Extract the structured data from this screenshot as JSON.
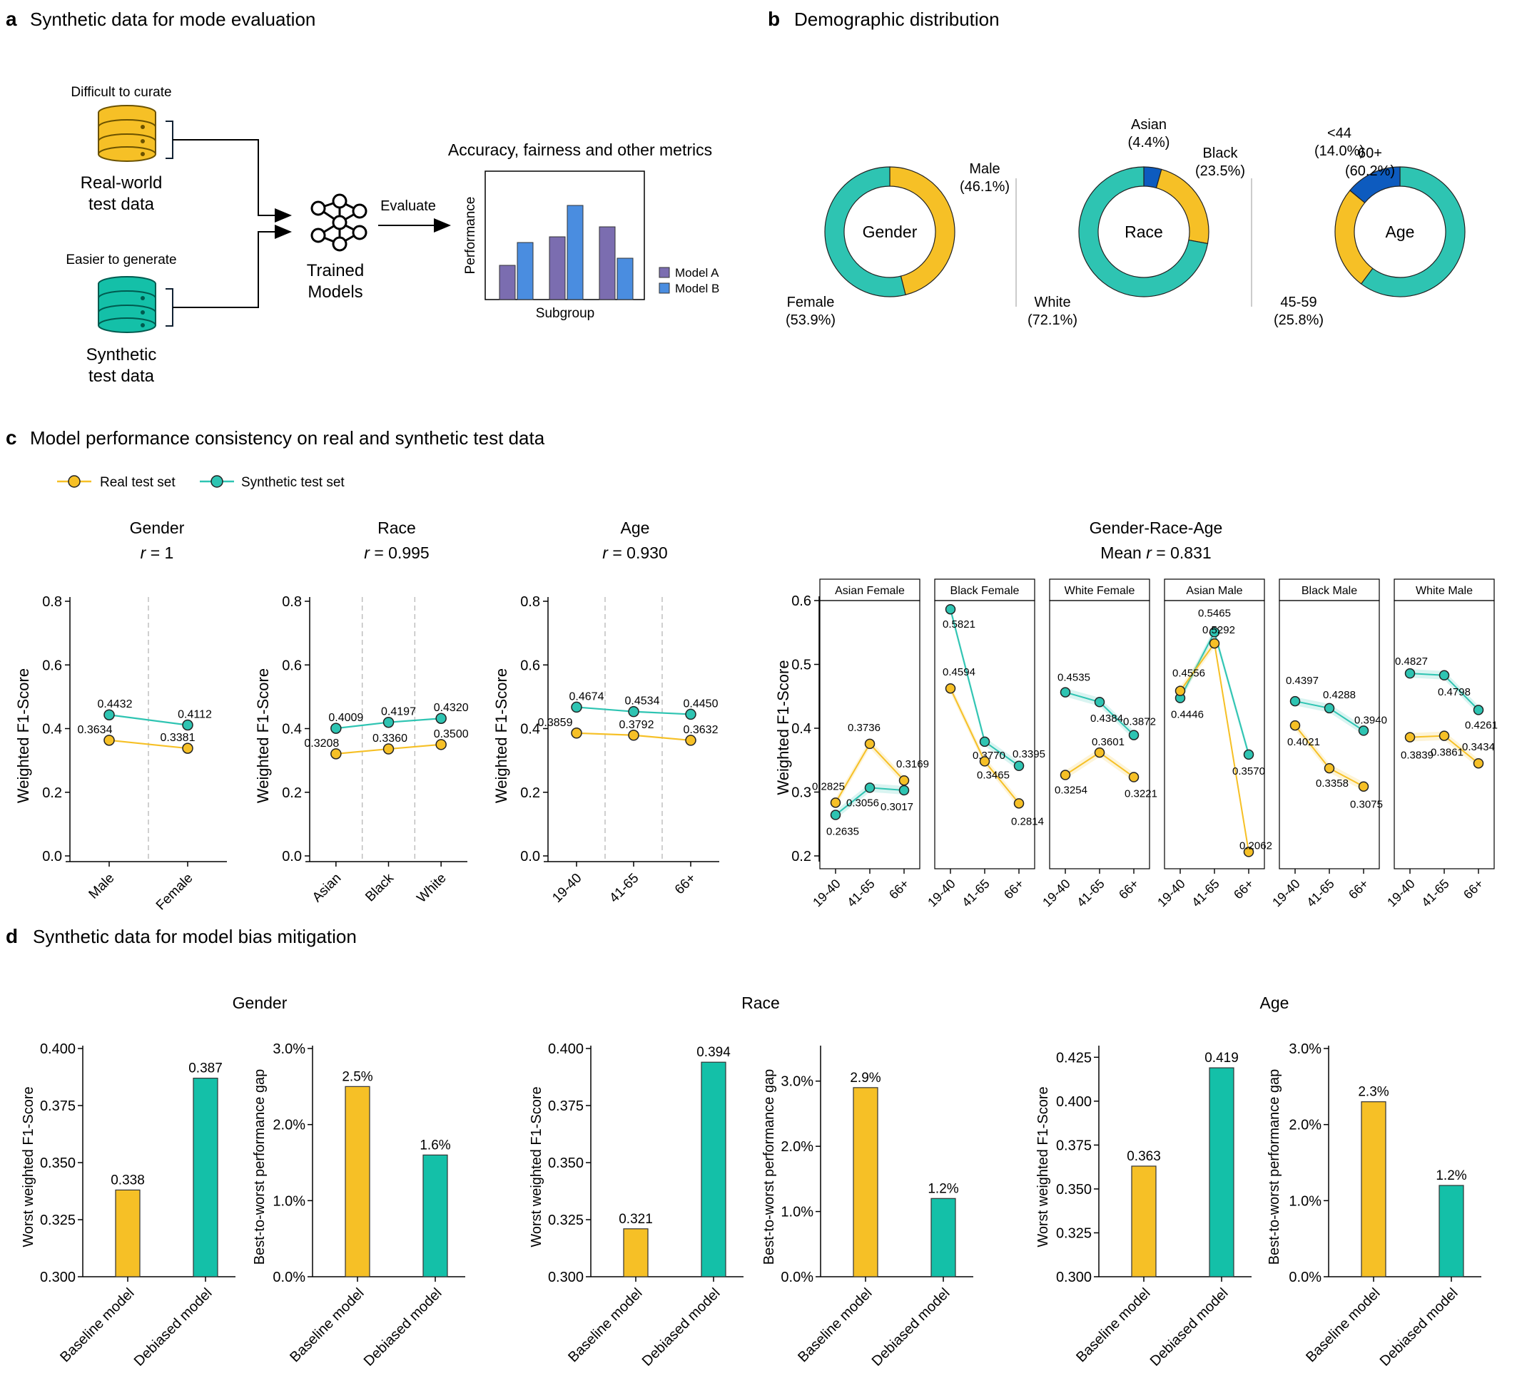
{
  "colors": {
    "yellow": "#f6c026",
    "teal": "#2ec4b2",
    "blue": "#0d5bbf",
    "purple": "#7b6db0",
    "lightblue": "#4a8de0",
    "db_yellow": "#f6c026",
    "db_teal": "#14c0a8"
  },
  "panel_a": {
    "letter": "a",
    "title": "Synthetic data for mode evaluation",
    "difficult": "Difficult to curate",
    "real_line1": "Real-world",
    "real_line2": "test data",
    "easier": "Easier to generate",
    "syn_line1": "Synthetic",
    "syn_line2": "test data",
    "trained1": "Trained",
    "trained2": "Models",
    "evaluate": "Evaluate",
    "metrics_title": "Accuracy, fairness and other metrics",
    "ylabel": "Performance",
    "xlabel": "Subgroup",
    "legend": [
      "Model A",
      "Model B"
    ],
    "icon_names": [
      "database-icon",
      "neural-network-icon"
    ]
  },
  "panel_b": {
    "letter": "b",
    "title": "Demographic distribution",
    "donuts": [
      {
        "center": "Gender",
        "segments": [
          {
            "label": "Male",
            "pct": "(46.1%)",
            "value": 46.1,
            "color": "#f6c026"
          },
          {
            "label": "Female",
            "pct": "(53.9%)",
            "value": 53.9,
            "color": "#2ec4b2"
          }
        ]
      },
      {
        "center": "Race",
        "segments": [
          {
            "label": "Asian",
            "pct": "(4.4%)",
            "value": 4.4,
            "color": "#0d5bbf"
          },
          {
            "label": "Black",
            "pct": "(23.5%)",
            "value": 23.5,
            "color": "#f6c026"
          },
          {
            "label": "White",
            "pct": "(72.1%)",
            "value": 72.1,
            "color": "#2ec4b2"
          }
        ]
      },
      {
        "center": "Age",
        "segments": [
          {
            "label": "60+",
            "pct": "(60.2%)",
            "value": 60.2,
            "color": "#2ec4b2"
          },
          {
            "label": "45-59",
            "pct": "(25.8%)",
            "value": 25.8,
            "color": "#f6c026"
          },
          {
            "label": "<44",
            "pct": "(14.0%)",
            "value": 14.0,
            "color": "#0d5bbf"
          }
        ]
      }
    ]
  },
  "panel_c": {
    "letter": "c",
    "title": "Model performance consistency on real and synthetic test data",
    "legend": [
      "Real test set",
      "Synthetic test set"
    ],
    "ylabel": "Weighted F1-Score"
  },
  "panel_d": {
    "letter": "d",
    "title": "Synthetic data for model bias mitigation"
  },
  "chart_data": [
    {
      "id": "c-gender",
      "type": "line",
      "title": "Gender",
      "subtitle_r": "r",
      "subtitle_val": " = 1",
      "categories": [
        "Male",
        "Female"
      ],
      "ylim": [
        0,
        0.8
      ],
      "series": [
        {
          "name": "Real test set",
          "values": [
            0.3634,
            0.3381
          ]
        },
        {
          "name": "Synthetic test set",
          "values": [
            0.4432,
            0.4112
          ]
        }
      ]
    },
    {
      "id": "c-race",
      "type": "line",
      "title": "Race",
      "subtitle_r": "r",
      "subtitle_val": " = 0.995",
      "categories": [
        "Asian",
        "Black",
        "White"
      ],
      "ylim": [
        0,
        0.8
      ],
      "series": [
        {
          "name": "Real test set",
          "values": [
            0.3208,
            0.336,
            0.35
          ]
        },
        {
          "name": "Synthetic test set",
          "values": [
            0.4009,
            0.4197,
            0.432
          ]
        }
      ]
    },
    {
      "id": "c-age",
      "type": "line",
      "title": "Age",
      "subtitle_r": "r",
      "subtitle_val": " = 0.930",
      "categories": [
        "19-40",
        "41-65",
        "66+"
      ],
      "ylim": [
        0,
        0.8
      ],
      "series": [
        {
          "name": "Real test set",
          "values": [
            0.3859,
            0.3792,
            0.3632
          ]
        },
        {
          "name": "Synthetic test set",
          "values": [
            0.4674,
            0.4534,
            0.445
          ]
        }
      ]
    },
    {
      "id": "c-gra",
      "type": "line",
      "title": "Gender-Race-Age",
      "subtitle_r": "r",
      "subtitle_pre": "Mean ",
      "subtitle_val": " = 0.831",
      "categories": [
        "19-40",
        "41-65",
        "66+"
      ],
      "ylim": [
        0.2,
        0.6
      ],
      "facets": [
        {
          "label": "Asian Female",
          "real": [
            0.2825,
            0.3736,
            0.3169
          ],
          "syn": [
            0.2635,
            0.3056,
            0.3017
          ]
        },
        {
          "label": "Black Female",
          "real": [
            0.4594,
            0.3465,
            0.2814
          ],
          "syn": [
            0.5821,
            0.377,
            0.3395
          ]
        },
        {
          "label": "White Female",
          "real": [
            0.3254,
            0.3601,
            0.3221
          ],
          "syn": [
            0.4535,
            0.4384,
            0.3872
          ]
        },
        {
          "label": "Asian Male",
          "real": [
            0.4556,
            0.5292,
            0.2062
          ],
          "syn": [
            0.4446,
            0.5465,
            0.357
          ]
        },
        {
          "label": "Black Male",
          "real": [
            0.4021,
            0.3358,
            0.3075
          ],
          "syn": [
            0.4397,
            0.4288,
            0.394
          ]
        },
        {
          "label": "White Male",
          "real": [
            0.3839,
            0.3861,
            0.3434
          ],
          "syn": [
            0.4827,
            0.4798,
            0.4261
          ]
        }
      ],
      "value_labels": {
        "Asian Female": {
          "real": [
            "0.2825",
            "0.3736",
            "0.3169"
          ],
          "syn": [
            "0.2635",
            "0.3056",
            "0.3017"
          ]
        },
        "Black Female": {
          "real": [
            "0.4594",
            "0.3465",
            "0.2814"
          ],
          "syn": [
            "0.5821",
            "0.3770",
            "0.3395"
          ]
        },
        "White Female": {
          "real": [
            "0.3254",
            "0.3601",
            "0.3221"
          ],
          "syn": [
            "0.4535",
            "0.4384",
            "0.3872"
          ]
        },
        "Asian Male": {
          "real": [
            "0.4556",
            "0.5292",
            "0.2062"
          ],
          "syn": [
            "0.4446",
            "0.5465",
            "0.3570"
          ]
        },
        "Black Male": {
          "real": [
            "0.4021",
            "0.3358",
            "0.3075"
          ],
          "syn": [
            "0.4397",
            "0.4288",
            "0.3940"
          ]
        },
        "White Male": {
          "real": [
            "0.3839",
            "0.3861",
            "0.3434"
          ],
          "syn": [
            "0.4827",
            "0.4798",
            "0.4261"
          ]
        }
      }
    },
    {
      "id": "d-gender-f1",
      "type": "bar",
      "group": "Gender",
      "ylabel": "Worst weighted F1-Score",
      "categories": [
        "Baseline model",
        "Debiased model"
      ],
      "values": [
        0.338,
        0.387
      ],
      "labels": [
        "0.338",
        "0.387"
      ],
      "ylim": [
        0.3,
        0.4
      ],
      "ticks": [
        "0.300",
        "0.325",
        "0.350",
        "0.375",
        "0.400"
      ]
    },
    {
      "id": "d-gender-gap",
      "type": "bar",
      "group": "Gender",
      "ylabel": "Best-to-worst performance gap",
      "categories": [
        "Baseline model",
        "Debiased model"
      ],
      "values": [
        2.5,
        1.6
      ],
      "labels": [
        "2.5%",
        "1.6%"
      ],
      "ylim": [
        0,
        3
      ],
      "ticks": [
        "0.0%",
        "1.0%",
        "2.0%",
        "3.0%"
      ]
    },
    {
      "id": "d-race-f1",
      "type": "bar",
      "group": "Race",
      "ylabel": "Worst weighted F1-Score",
      "categories": [
        "Baseline model",
        "Debiased model"
      ],
      "values": [
        0.321,
        0.394
      ],
      "labels": [
        "0.321",
        "0.394"
      ],
      "ylim": [
        0.3,
        0.4
      ],
      "ticks": [
        "0.300",
        "0.325",
        "0.350",
        "0.375",
        "0.400"
      ]
    },
    {
      "id": "d-race-gap",
      "type": "bar",
      "group": "Race",
      "ylabel": "Best-to-worst performance gap",
      "categories": [
        "Baseline model",
        "Debiased model"
      ],
      "values": [
        2.9,
        1.2
      ],
      "labels": [
        "2.9%",
        "1.2%"
      ],
      "ylim": [
        0,
        3.5
      ],
      "ticks": [
        "0.0%",
        "1.0%",
        "2.0%",
        "3.0%"
      ]
    },
    {
      "id": "d-age-f1",
      "type": "bar",
      "group": "Age",
      "ylabel": "Worst weighted F1-Score",
      "categories": [
        "Baseline model",
        "Debiased model"
      ],
      "values": [
        0.363,
        0.419
      ],
      "labels": [
        "0.363",
        "0.419"
      ],
      "ylim": [
        0.3,
        0.43
      ],
      "ticks": [
        "0.300",
        "0.325",
        "0.350",
        "0.375",
        "0.400",
        "0.425"
      ]
    },
    {
      "id": "d-age-gap",
      "type": "bar",
      "group": "Age",
      "ylabel": "Best-to-worst performance gap",
      "categories": [
        "Baseline model",
        "Debiased model"
      ],
      "values": [
        2.3,
        1.2
      ],
      "labels": [
        "2.3%",
        "1.2%"
      ],
      "ylim": [
        0,
        3
      ],
      "ticks": [
        "0.0%",
        "1.0%",
        "2.0%",
        "3.0%"
      ]
    }
  ]
}
